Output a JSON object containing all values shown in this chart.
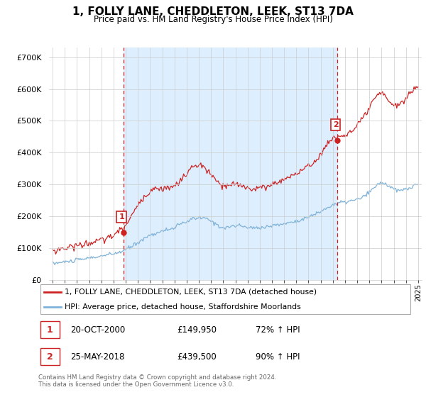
{
  "title": "1, FOLLY LANE, CHEDDLETON, LEEK, ST13 7DA",
  "subtitle": "Price paid vs. HM Land Registry's House Price Index (HPI)",
  "legend_line1": "1, FOLLY LANE, CHEDDLETON, LEEK, ST13 7DA (detached house)",
  "legend_line2": "HPI: Average price, detached house, Staffordshire Moorlands",
  "footnote": "Contains HM Land Registry data © Crown copyright and database right 2024.\nThis data is licensed under the Open Government Licence v3.0.",
  "annotation1_label": "1",
  "annotation1_date": "20-OCT-2000",
  "annotation1_price": "£149,950",
  "annotation1_hpi": "72% ↑ HPI",
  "annotation2_label": "2",
  "annotation2_date": "25-MAY-2018",
  "annotation2_price": "£439,500",
  "annotation2_hpi": "90% ↑ HPI",
  "sale1_year": 2000.8,
  "sale1_value": 149950,
  "sale2_year": 2018.37,
  "sale2_value": 439500,
  "hpi_color": "#7fb2d8",
  "sale_color": "#cc2222",
  "vline_color": "#cc2222",
  "fill_color": "#ddeeff",
  "ylim": [
    0,
    730000
  ],
  "xlim_start": 1994.7,
  "xlim_end": 2025.3
}
